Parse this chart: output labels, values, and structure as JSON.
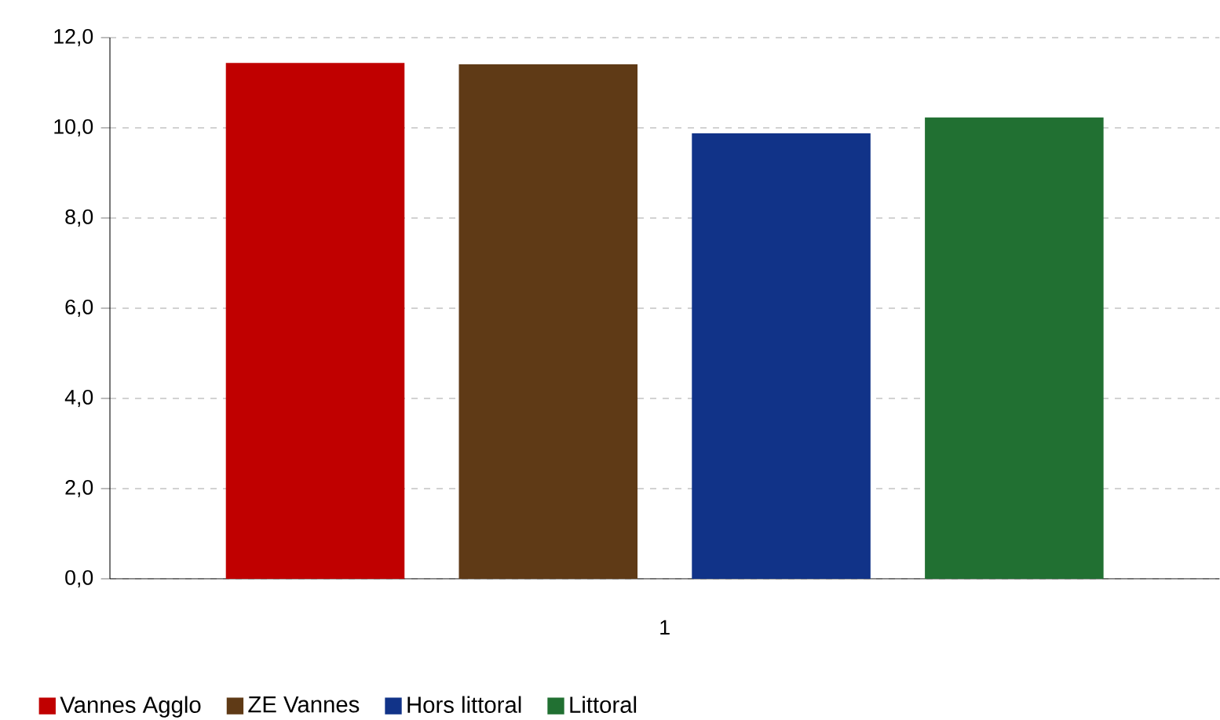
{
  "chart_data": {
    "type": "bar",
    "categories": [
      "1"
    ],
    "series": [
      {
        "name": "Vannes Agglo",
        "color": "#c00000",
        "values": [
          11.44
        ]
      },
      {
        "name": "ZE Vannes",
        "color": "#5f3a16",
        "values": [
          11.41
        ]
      },
      {
        "name": "Hors littoral",
        "color": "#113388",
        "values": [
          9.88
        ]
      },
      {
        "name": "Littoral",
        "color": "#217032",
        "values": [
          10.23
        ]
      }
    ],
    "ylim": [
      0,
      12
    ],
    "yticks": [
      {
        "value": 0,
        "label": "0,0"
      },
      {
        "value": 2,
        "label": "2,0"
      },
      {
        "value": 4,
        "label": "4,0"
      },
      {
        "value": 6,
        "label": "6,0"
      },
      {
        "value": 8,
        "label": "8,0"
      },
      {
        "value": 10,
        "label": "10,0"
      },
      {
        "value": 12,
        "label": "12,0"
      }
    ],
    "grid": "y",
    "legend": "bottom"
  }
}
